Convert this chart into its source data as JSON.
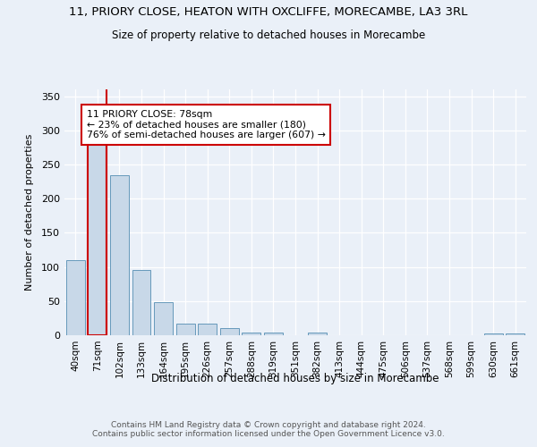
{
  "title1": "11, PRIORY CLOSE, HEATON WITH OXCLIFFE, MORECAMBE, LA3 3RL",
  "title2": "Size of property relative to detached houses in Morecambe",
  "xlabel": "Distribution of detached houses by size in Morecambe",
  "ylabel": "Number of detached properties",
  "categories": [
    "40sqm",
    "71sqm",
    "102sqm",
    "133sqm",
    "164sqm",
    "195sqm",
    "226sqm",
    "257sqm",
    "288sqm",
    "319sqm",
    "351sqm",
    "382sqm",
    "413sqm",
    "444sqm",
    "475sqm",
    "506sqm",
    "537sqm",
    "568sqm",
    "599sqm",
    "630sqm",
    "661sqm"
  ],
  "values": [
    110,
    283,
    234,
    95,
    48,
    17,
    17,
    11,
    4,
    4,
    0,
    4,
    0,
    0,
    0,
    0,
    0,
    0,
    0,
    3,
    3
  ],
  "bar_color": "#c8d8e8",
  "bar_edge_color": "#6699bb",
  "highlight_bar_index": 1,
  "vline_color": "#cc0000",
  "annotation_text": "11 PRIORY CLOSE: 78sqm\n← 23% of detached houses are smaller (180)\n76% of semi-detached houses are larger (607) →",
  "annotation_box_color": "white",
  "annotation_box_edge_color": "#cc0000",
  "ylim": [
    0,
    360
  ],
  "yticks": [
    0,
    50,
    100,
    150,
    200,
    250,
    300,
    350
  ],
  "footnote": "Contains HM Land Registry data © Crown copyright and database right 2024.\nContains public sector information licensed under the Open Government Licence v3.0.",
  "bg_color": "#eaf0f8",
  "plot_bg_color": "#eaf0f8"
}
